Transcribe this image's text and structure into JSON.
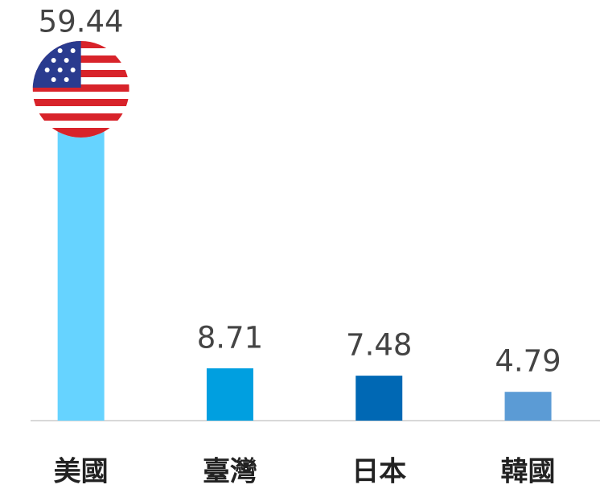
{
  "chart_data": {
    "type": "bar",
    "categories": [
      "美國",
      "臺灣",
      "日本",
      "韓國"
    ],
    "values": [
      59.44,
      8.71,
      7.48,
      4.79
    ],
    "colors": [
      "#66d3ff",
      "#009fe0",
      "#0068b4",
      "#5b9bd5"
    ]
  }
}
